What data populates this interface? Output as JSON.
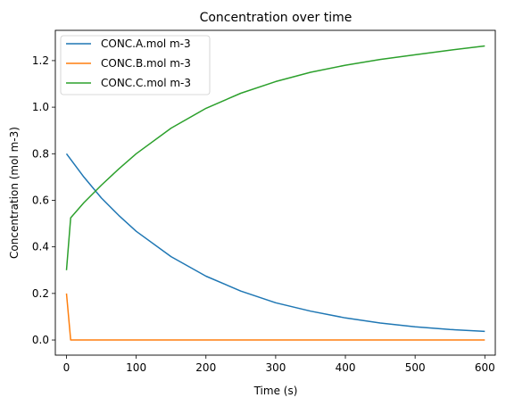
{
  "chart_data": {
    "type": "line",
    "title": "Concentration over time",
    "xlabel": "Time (s)",
    "ylabel": "Concentration (mol m-3)",
    "xlim": [
      -16,
      615
    ],
    "ylim": [
      -0.065,
      1.33
    ],
    "xticks": [
      0,
      100,
      200,
      300,
      400,
      500,
      600
    ],
    "yticks": [
      0.0,
      0.2,
      0.4,
      0.6,
      0.8,
      1.0,
      1.2
    ],
    "ytick_labels": [
      "0.0",
      "0.2",
      "0.4",
      "0.6",
      "0.8",
      "1.0",
      "1.2"
    ],
    "grid": false,
    "legend_position": "upper-left",
    "series": [
      {
        "name": "CONC.A.mol m-3",
        "color": "#1f77b4",
        "x": [
          0,
          25,
          50,
          75,
          100,
          150,
          200,
          250,
          300,
          350,
          400,
          450,
          500,
          550,
          600
        ],
        "y": [
          0.8,
          0.7,
          0.61,
          0.535,
          0.467,
          0.358,
          0.274,
          0.21,
          0.16,
          0.124,
          0.095,
          0.073,
          0.057,
          0.045,
          0.037
        ]
      },
      {
        "name": "CONC.B.mol m-3",
        "color": "#ff7f0e",
        "x": [
          0,
          6,
          600
        ],
        "y": [
          0.2,
          0.0,
          0.0
        ]
      },
      {
        "name": "CONC.C.mol m-3",
        "color": "#2ca02c",
        "x": [
          0,
          6,
          25,
          50,
          75,
          100,
          150,
          200,
          250,
          300,
          350,
          400,
          450,
          500,
          550,
          600
        ],
        "y": [
          0.3,
          0.525,
          0.59,
          0.665,
          0.735,
          0.8,
          0.91,
          0.995,
          1.06,
          1.11,
          1.15,
          1.18,
          1.205,
          1.225,
          1.245,
          1.263
        ]
      }
    ]
  }
}
